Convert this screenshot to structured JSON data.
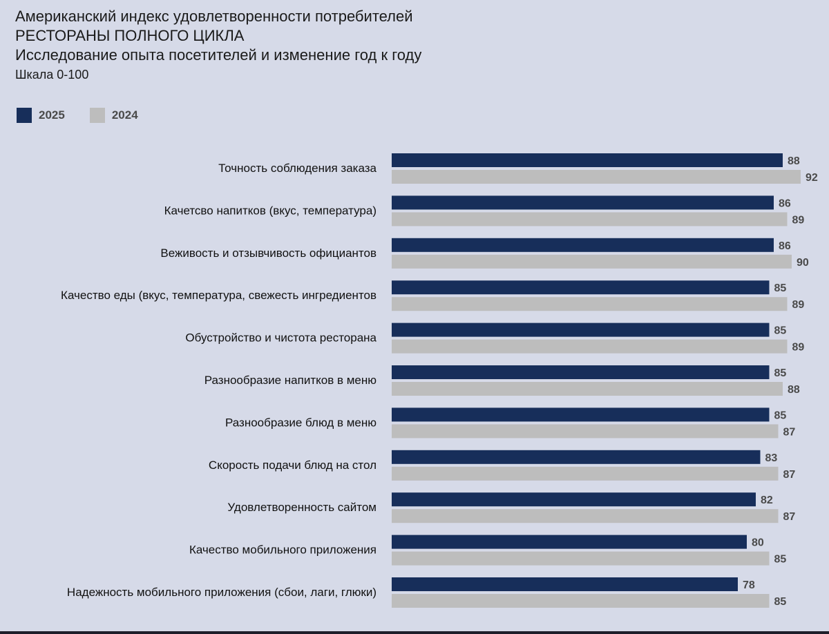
{
  "header": {
    "title": "Американский индекс удовлетворенности потребителей",
    "subtitle": "РЕСТОРАНЫ ПОЛНОГО ЦИКЛА",
    "description": "Исследование опыта посетителей и изменение год к году",
    "scale": "Шкала 0-100"
  },
  "colors": {
    "series_2025": "#172e5a",
    "series_2024": "#bdbdbd",
    "label_text": "#4a4a4a",
    "category_text": "#111111"
  },
  "chart_data": {
    "type": "bar",
    "orientation": "horizontal",
    "categories": [
      "Точность соблюдения заказа",
      "Качетсво напитков (вкус, температура)",
      "Веживость и отзывчивость официантов",
      "Качество еды (вкус, температура, свежесть ингредиентов",
      "Обустройство и чистота ресторана",
      "Разнообразие напитков в меню",
      "Разнообразие блюд в меню",
      "Скорость подачи блюд на стол",
      "Удовлетворенность сайтом",
      "Качество мобильного приложения",
      "Надежность мобильного приложения (сбои, лаги, глюки)"
    ],
    "series": [
      {
        "name": "2025",
        "values": [
          88,
          86,
          86,
          85,
          85,
          85,
          85,
          83,
          82,
          80,
          78
        ]
      },
      {
        "name": "2024",
        "values": [
          92,
          89,
          90,
          89,
          89,
          88,
          87,
          87,
          87,
          85,
          85
        ]
      }
    ],
    "xlim": [
      0,
      100
    ],
    "grid": false,
    "legend_position": "top-left",
    "data_labels": true
  }
}
